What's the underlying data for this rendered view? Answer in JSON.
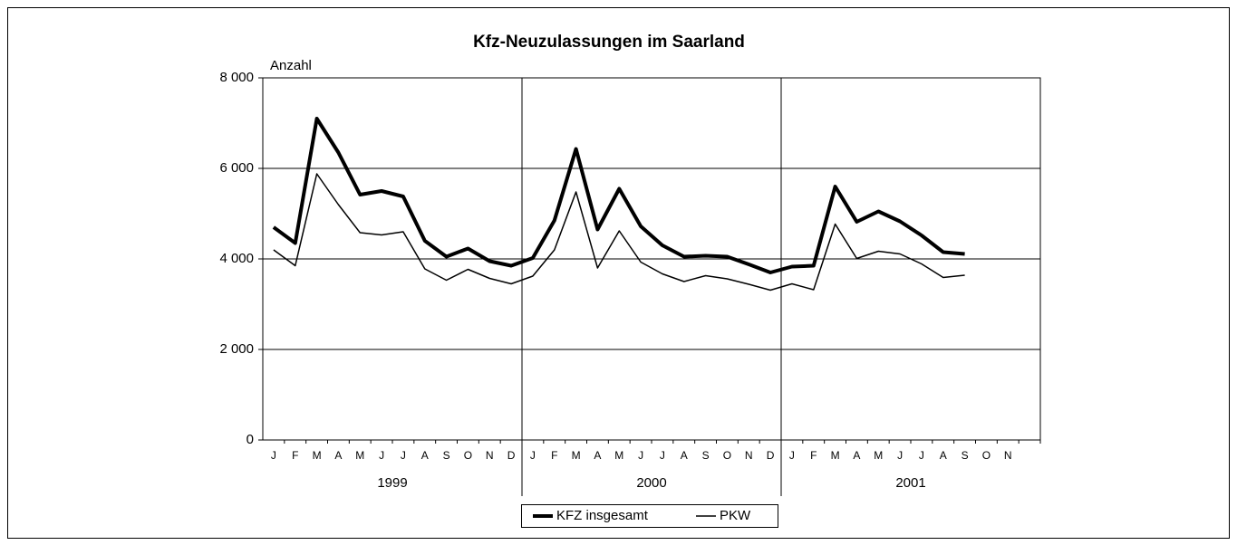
{
  "chart_data": {
    "type": "line",
    "title": "Kfz-Neuzulassungen im Saarland",
    "y_label": "Anzahl",
    "categories": [
      "J",
      "F",
      "M",
      "A",
      "M",
      "J",
      "J",
      "A",
      "S",
      "O",
      "N",
      "D",
      "J",
      "F",
      "M",
      "A",
      "M",
      "J",
      "J",
      "A",
      "S",
      "O",
      "N",
      "D",
      "J",
      "F",
      "M",
      "A",
      "M",
      "J",
      "J",
      "A",
      "S",
      "O",
      "N",
      null
    ],
    "years": [
      "1999",
      "2000",
      "2001"
    ],
    "series": [
      {
        "name": "KFZ insgesamt",
        "color": "#000000",
        "line_width": 4,
        "values": [
          4700,
          4350,
          7100,
          6350,
          5420,
          5500,
          5380,
          4400,
          4050,
          4230,
          3950,
          3850,
          4020,
          4850,
          6430,
          4650,
          5550,
          4720,
          4300,
          4050,
          4070,
          4050,
          3880,
          3700,
          3830,
          3850,
          5600,
          4820,
          5050,
          4830,
          4520,
          4150,
          4110,
          null,
          null,
          null
        ]
      },
      {
        "name": "PKW",
        "color": "#000000",
        "line_width": 1.5,
        "values": [
          4200,
          3850,
          5880,
          5200,
          4580,
          4530,
          4600,
          3780,
          3530,
          3770,
          3570,
          3450,
          3620,
          4200,
          5480,
          3800,
          4620,
          3930,
          3670,
          3500,
          3630,
          3560,
          3440,
          3310,
          3450,
          3320,
          4770,
          4010,
          4170,
          4110,
          3890,
          3590,
          3640,
          null,
          null,
          null
        ]
      }
    ],
    "ylim": [
      0,
      8000
    ],
    "yticks": [
      0,
      {
        "value": 2000,
        "label": "2 000"
      },
      {
        "value": 4000,
        "label": "4 000"
      },
      {
        "value": 6000,
        "label": "6 000"
      },
      {
        "value": 8000,
        "label": "8 000"
      }
    ],
    "grid": true
  }
}
